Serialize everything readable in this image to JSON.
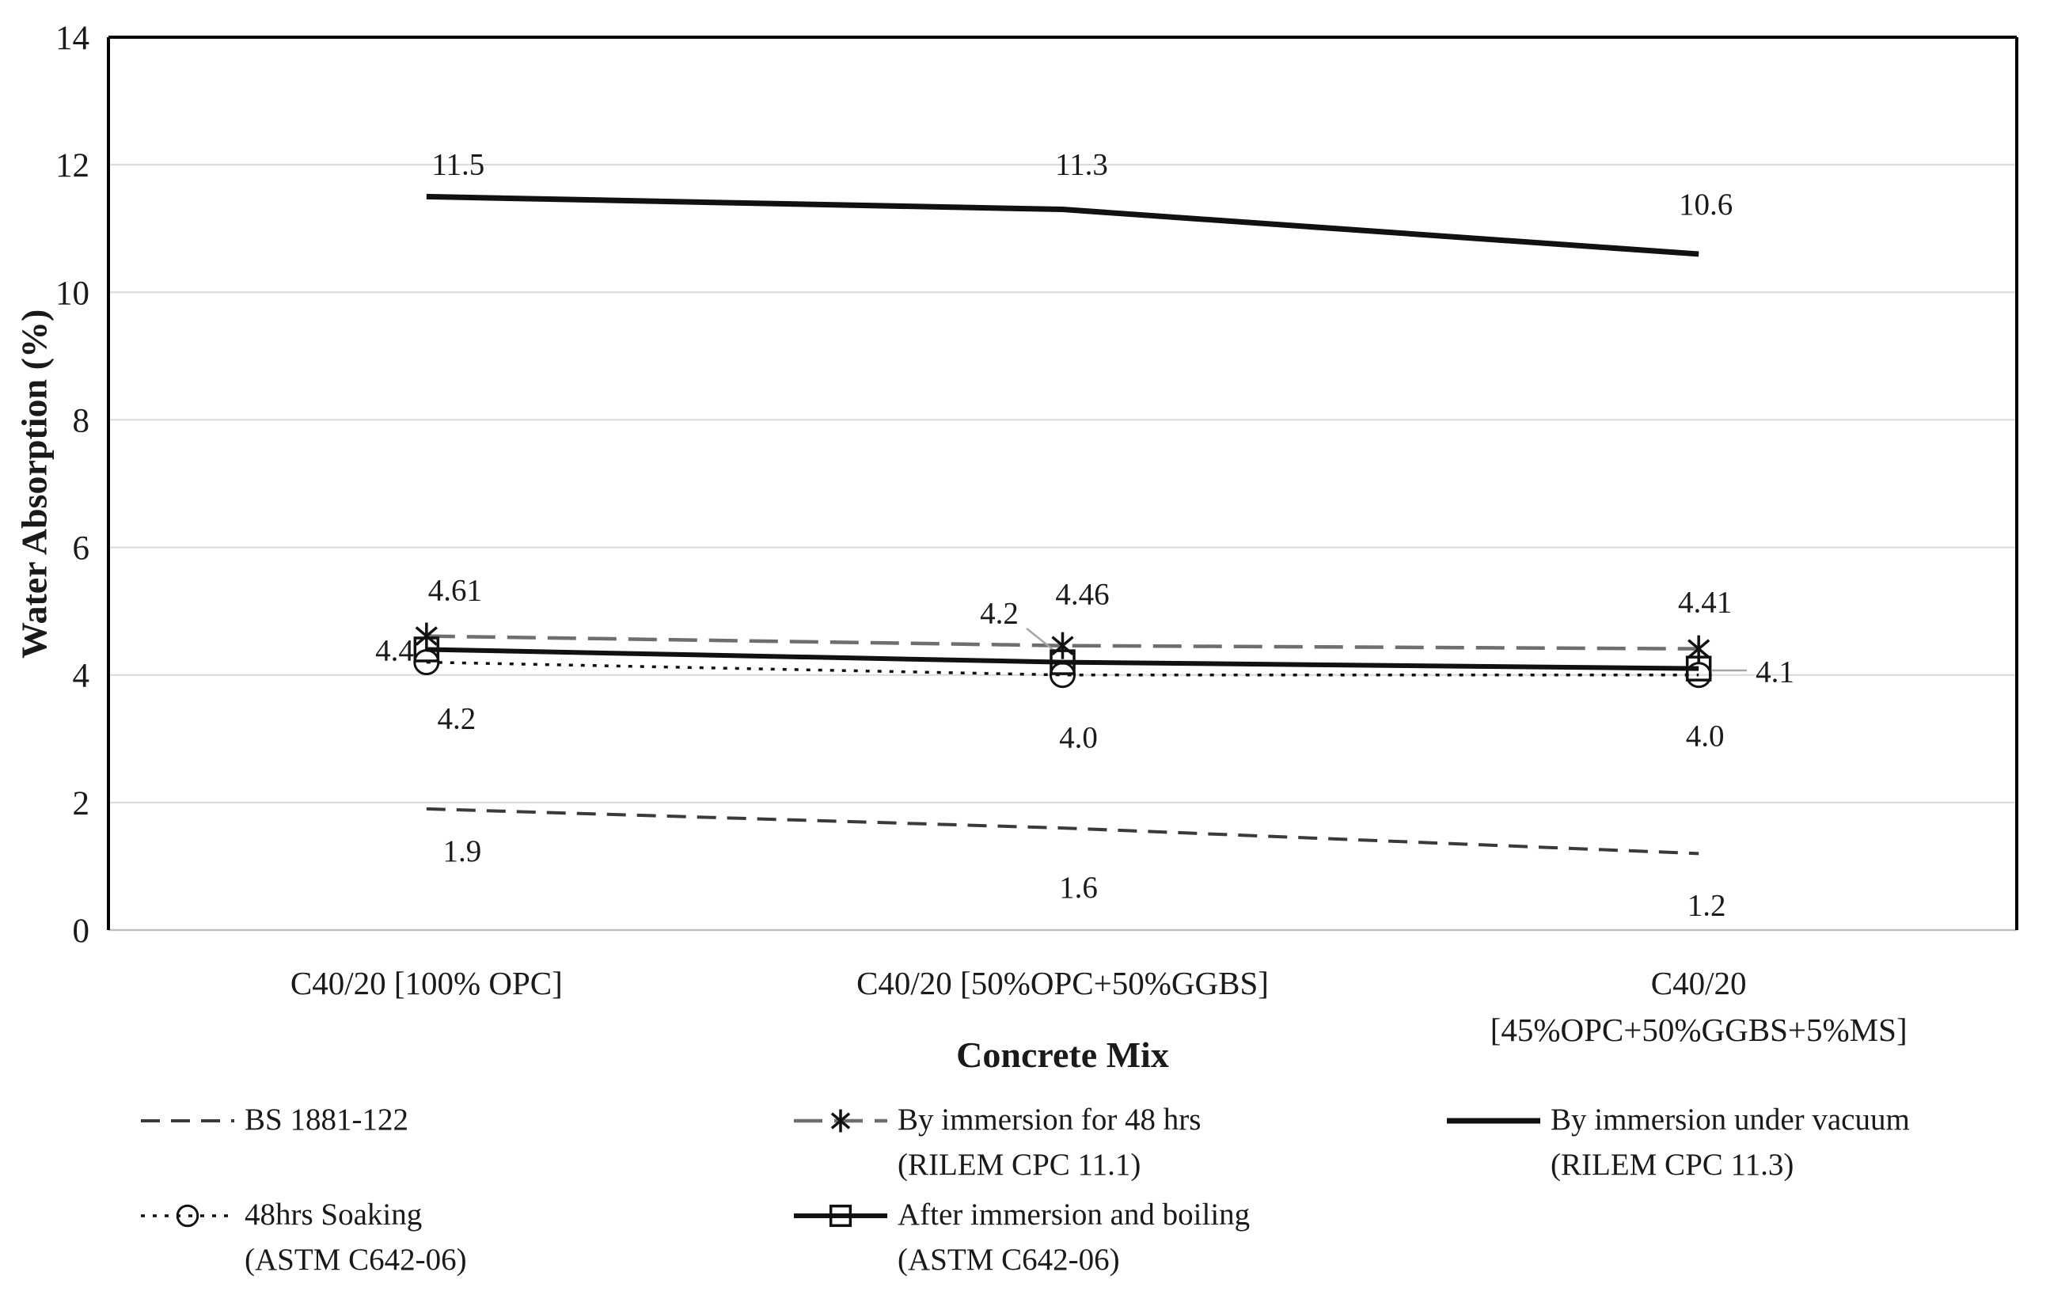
{
  "colors": {
    "background": "#ffffff",
    "grid": "#d9d9d9",
    "baseline": "#bfbfbf",
    "axis_border": "#000000",
    "text": "#1a1a1a",
    "leader": "#a6a6a6",
    "bs_line": "#3a3a3a",
    "rilem_dash_line": "#6e6e6e",
    "black_line": "#111111"
  },
  "chart_data": {
    "type": "line",
    "title": "",
    "xlabel": "Concrete Mix",
    "ylabel": "Water Absorption (%)",
    "ylim": [
      0,
      14
    ],
    "ytick_step": 2,
    "ytick_labels": [
      "0",
      "2",
      "4",
      "6",
      "8",
      "10",
      "12",
      "14"
    ],
    "grid": "horizontal-only",
    "legend_position": "bottom",
    "categories": [
      [
        "C40/20 [100% OPC]"
      ],
      [
        "C40/20 [50%OPC+50%GGBS]"
      ],
      [
        "C40/20",
        "[45%OPC+50%GGBS+5%MS]"
      ]
    ],
    "series": [
      {
        "name": "BS 1881-122",
        "values": [
          1.9,
          1.6,
          1.2
        ],
        "labels": [
          "1.9",
          "1.6",
          "1.2"
        ],
        "line": "dashed",
        "marker": "none",
        "color": "#3a3a3a"
      },
      {
        "name": "By immersion for 48 hrs (RILEM CPC 11.1)",
        "values": [
          4.61,
          4.46,
          4.41
        ],
        "labels": [
          "4.61",
          "4.46",
          "4.41"
        ],
        "line": "long-dash",
        "marker": "asterisk",
        "color": "#6e6e6e"
      },
      {
        "name": "By immersion under vacuum (RILEM CPC 11.3)",
        "values": [
          11.5,
          11.3,
          10.6
        ],
        "labels": [
          "11.5",
          "11.3",
          "10.6"
        ],
        "line": "solid-thick",
        "marker": "none",
        "color": "#111111"
      },
      {
        "name": "48hrs Soaking (ASTM C642-06)",
        "values": [
          4.2,
          4.0,
          4.0
        ],
        "labels": [
          "4.2",
          "4.0",
          "4.0"
        ],
        "line": "dotted",
        "marker": "circle",
        "color": "#111111"
      },
      {
        "name": "After immersion and boiling (ASTM C642-06)",
        "values": [
          4.4,
          4.2,
          4.1
        ],
        "labels": [
          "4.4",
          "4.2",
          "4.1"
        ],
        "line": "solid",
        "marker": "square",
        "color": "#111111"
      }
    ]
  },
  "legend": {
    "rows": [
      [
        {
          "swatch": "dashed",
          "marker": "none",
          "col": 0,
          "lines": [
            "BS 1881-122"
          ]
        },
        {
          "swatch": "long-dash",
          "marker": "asterisk",
          "col": 1,
          "lines": [
            "By immersion for 48 hrs",
            "(RILEM CPC 11.1)"
          ]
        },
        {
          "swatch": "solid-thick",
          "marker": "none",
          "col": 2,
          "lines": [
            "By immersion under vacuum",
            "(RILEM CPC 11.3)"
          ]
        }
      ],
      [
        {
          "swatch": "dotted",
          "marker": "circle",
          "col": 0,
          "lines": [
            "48hrs Soaking",
            "(ASTM C642-06)"
          ]
        },
        {
          "swatch": "solid",
          "marker": "square",
          "col": 1,
          "lines": [
            "After immersion and boiling",
            "(ASTM C642-06)"
          ]
        }
      ]
    ]
  }
}
